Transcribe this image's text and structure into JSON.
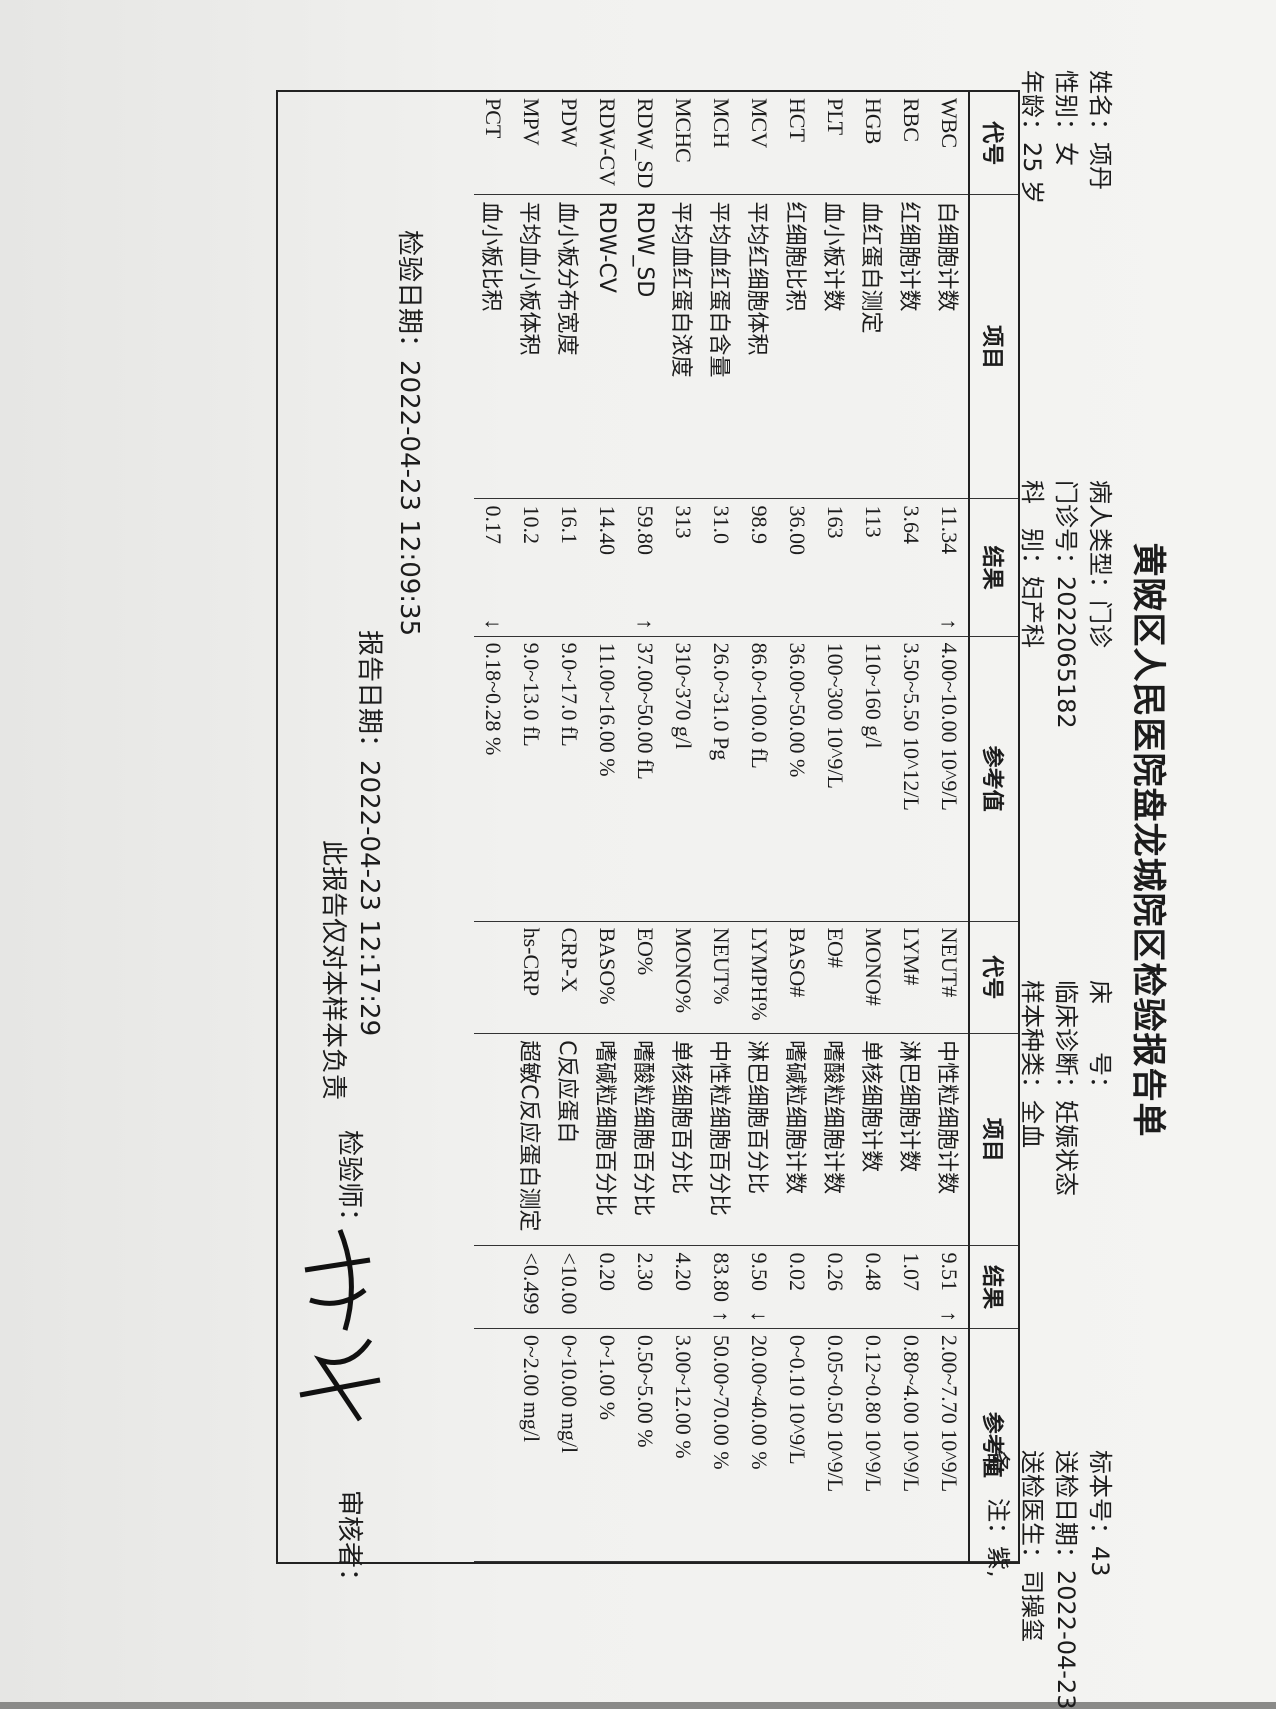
{
  "header": {
    "title": "黄陂区人民医院盘龙城院区检验报告单",
    "fields": [
      [
        {
          "label": "姓名：",
          "value": "项丹"
        },
        {
          "label": "性别：",
          "value": "女"
        },
        {
          "label": "年龄：",
          "value": "25 岁"
        }
      ],
      [
        {
          "label": "病人类型：",
          "value": "门诊"
        },
        {
          "label": "门诊号：",
          "value": "2022065182"
        },
        {
          "label": "科　别：",
          "value": "妇产科"
        }
      ],
      [
        {
          "label": "床　　号："
        },
        {
          "label": "临床诊断：",
          "value": "妊娠状态"
        },
        {
          "label": "样本种类：",
          "value": "全血"
        }
      ],
      [
        {
          "label": "标本号：",
          "value": "43"
        },
        {
          "label": "送检日期：",
          "value": "2022-04-23"
        },
        {
          "label": "送检医生：",
          "value": "司操玺"
        },
        {
          "label": "备　注：",
          "value": "紫,"
        }
      ]
    ]
  },
  "table": {
    "columns": [
      "代号",
      "项目",
      "结果",
      "参考值",
      "代号",
      "项目",
      "结果",
      "参考值"
    ],
    "left": [
      {
        "code": "WBC",
        "name": "白细胞计数",
        "result": "11.34",
        "flag": "↑",
        "ref": "4.00~10.00 10^9/L"
      },
      {
        "code": "RBC",
        "name": "红细胞计数",
        "result": "3.64",
        "ref": "3.50~5.50 10^12/L"
      },
      {
        "code": "HGB",
        "name": "血红蛋白测定",
        "result": "113",
        "ref": "110~160 g/l"
      },
      {
        "code": "PLT",
        "name": "血小板计数",
        "result": "163",
        "ref": "100~300 10^9/L"
      },
      {
        "code": "HCT",
        "name": "红细胞比积",
        "result": "36.00",
        "ref": "36.00~50.00 %"
      },
      {
        "code": "MCV",
        "name": "平均红细胞体积",
        "result": "98.9",
        "ref": "86.0~100.0 fL"
      },
      {
        "code": "MCH",
        "name": "平均血红蛋白含量",
        "result": "31.0",
        "ref": "26.0~31.0 Pg"
      },
      {
        "code": "MCHC",
        "name": "平均血红蛋白浓度",
        "result": "313",
        "ref": "310~370 g/l"
      },
      {
        "code": "RDW_SD",
        "name": "RDW_SD",
        "result": "59.80",
        "flag": "↑",
        "ref": "37.00~50.00 fL"
      },
      {
        "code": "RDW-CV",
        "name": "RDW-CV",
        "result": "14.40",
        "ref": "11.00~16.00 %"
      },
      {
        "code": "PDW",
        "name": "血小板分布宽度",
        "result": "16.1",
        "ref": "9.0~17.0 fL"
      },
      {
        "code": "MPV",
        "name": "平均血小板体积",
        "result": "10.2",
        "ref": "9.0~13.0 fL"
      },
      {
        "code": "PCT",
        "name": "血小板比积",
        "result": "0.17",
        "flag": "↓",
        "ref": "0.18~0.28 %"
      }
    ],
    "right": [
      {
        "code": "NEUT#",
        "name": "中性粒细胞计数",
        "result": "9.51",
        "flag": "↑",
        "ref": "2.00~7.70 10^9/L"
      },
      {
        "code": "LYM#",
        "name": "淋巴细胞计数",
        "result": "1.07",
        "ref": "0.80~4.00 10^9/L"
      },
      {
        "code": "MONO#",
        "name": "单核细胞计数",
        "result": "0.48",
        "ref": "0.12~0.80 10^9/L"
      },
      {
        "code": "EO#",
        "name": "嗜酸粒细胞计数",
        "result": "0.26",
        "ref": "0.05~0.50 10^9/L"
      },
      {
        "code": "BASO#",
        "name": "嗜碱粒细胞计数",
        "result": "0.02",
        "ref": "0~0.10 10^9/L"
      },
      {
        "code": "LYMPH%",
        "name": "淋巴细胞百分比",
        "result": "9.50",
        "flag": "↓",
        "ref": "20.00~40.00 %"
      },
      {
        "code": "NEUT%",
        "name": "中性粒细胞百分比",
        "result": "83.80",
        "flag": "↑",
        "ref": "50.00~70.00 %"
      },
      {
        "code": "MONO%",
        "name": "单核细胞百分比",
        "result": "4.20",
        "ref": "3.00~12.00 %"
      },
      {
        "code": "EO%",
        "name": "嗜酸粒细胞百分比",
        "result": "2.30",
        "ref": "0.50~5.00 %"
      },
      {
        "code": "BASO%",
        "name": "嗜碱粒细胞百分比",
        "result": "0.20",
        "ref": "0~1.00 %"
      },
      {
        "code": "CRP-X",
        "name": "C反应蛋白",
        "result": "<10.00",
        "ref": "0~10.00 mg/l"
      },
      {
        "code": "hs-CRP",
        "name": "超敏C反应蛋白测定",
        "result": "<0.499",
        "ref": "0~2.00 mg/l"
      }
    ]
  },
  "footer": {
    "check_date": "检验日期：2022-04-23 12:09:35",
    "report_date": "报告日期：2022-04-23 12:17:29",
    "disclaimer": "此报告仅对本样本负责",
    "inspector": "检验师：",
    "reviewer": "审核者："
  }
}
